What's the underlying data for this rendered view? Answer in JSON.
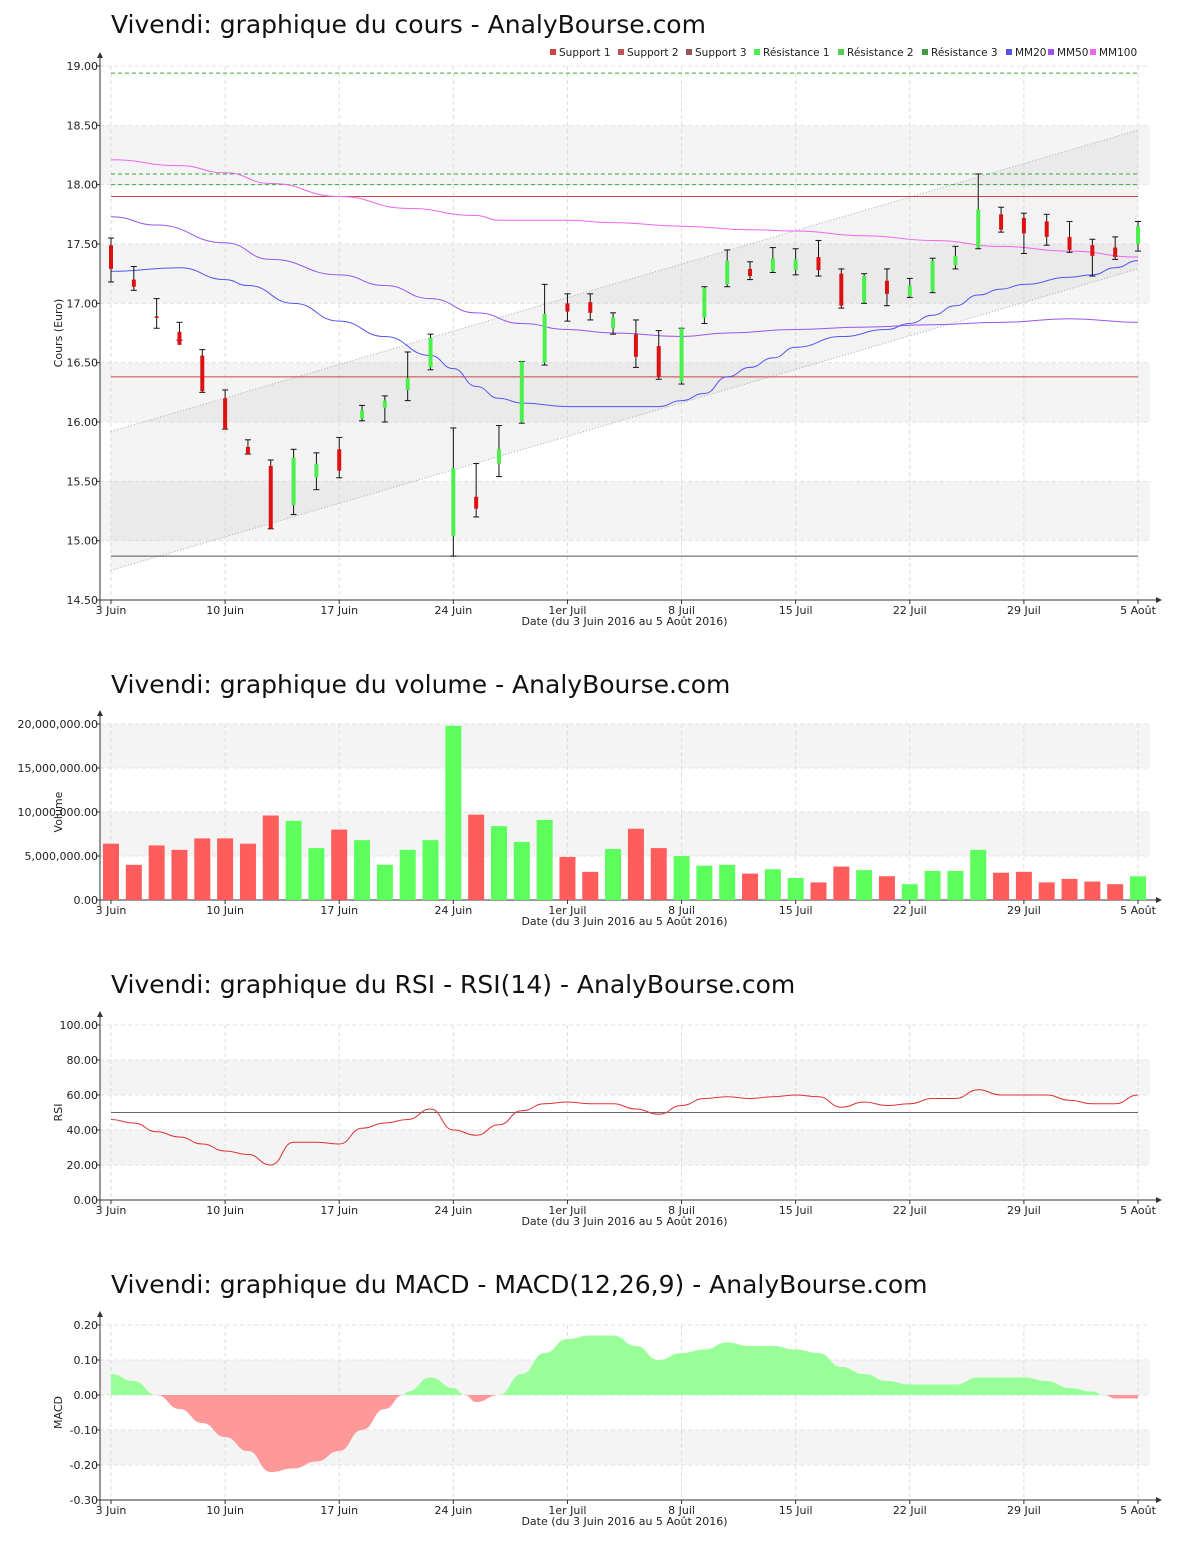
{
  "titles": {
    "price": "Vivendi: graphique du cours - AnalyBourse.com",
    "volume": "Vivendi: graphique du volume - AnalyBourse.com",
    "rsi": "Vivendi: graphique du RSI - RSI(14) - AnalyBourse.com",
    "macd": "Vivendi: graphique du MACD - MACD(12,26,9) - AnalyBourse.com"
  },
  "colors": {
    "up": "#4cf04c",
    "down": "#dd1111",
    "vol_up": "#5cff5c",
    "vol_down": "#ff5c5c",
    "mm20": "#5555ee",
    "mm50": "#9955ee",
    "mm100": "#ee66ee",
    "support": "#cc4444",
    "support3": "#555555",
    "resistance": "#33aa33",
    "macd_pos": "#99ff99",
    "macd_neg": "#ff9999",
    "rsi_line": "#dd3333"
  },
  "chart_data": [
    {
      "type": "candlestick",
      "title": "Vivendi: graphique du cours - AnalyBourse.com",
      "xlabel": "Date (du 3 Juin 2016 au 5 Août 2016)",
      "ylabel": "Cours (Euro)",
      "ylim": [
        14.5,
        19.0
      ],
      "yticks": [
        "14.50",
        "15.00",
        "15.50",
        "16.00",
        "16.50",
        "17.00",
        "17.50",
        "18.00",
        "18.50",
        "19.00"
      ],
      "xtick_labels": [
        {
          "label": "3 Juin",
          "day": 0
        },
        {
          "label": "10 Juin",
          "day": 5
        },
        {
          "label": "17 Juin",
          "day": 10
        },
        {
          "label": "24 Juin",
          "day": 15
        },
        {
          "label": "1er Juil",
          "day": 20
        },
        {
          "label": "8 Juil",
          "day": 25
        },
        {
          "label": "15 Juil",
          "day": 30
        },
        {
          "label": "22 Juil",
          "day": 35
        },
        {
          "label": "29 Juil",
          "day": 40
        },
        {
          "label": "5 Août",
          "day": 45
        }
      ],
      "legend": [
        "Support 1",
        "Support 2",
        "Support 3",
        "Résistance 1",
        "Résistance 2",
        "Résistance 3",
        "MM20",
        "MM50",
        "MM100"
      ],
      "legend_placement": "top-right",
      "grid": true,
      "candles": [
        {
          "o": 17.49,
          "h": 17.55,
          "l": 17.18,
          "c": 17.29
        },
        {
          "o": 17.2,
          "h": 17.31,
          "l": 17.11,
          "c": 17.14
        },
        {
          "o": 16.89,
          "h": 17.04,
          "l": 16.79,
          "c": 16.88
        },
        {
          "o": 16.76,
          "h": 16.84,
          "l": 16.69,
          "c": 16.65
        },
        {
          "o": 16.56,
          "h": 16.61,
          "l": 16.25,
          "c": 16.26
        },
        {
          "o": 16.2,
          "h": 16.27,
          "l": 15.94,
          "c": 15.94
        },
        {
          "o": 15.79,
          "h": 15.85,
          "l": 15.73,
          "c": 15.73
        },
        {
          "o": 15.63,
          "h": 15.68,
          "l": 15.1,
          "c": 15.1
        },
        {
          "o": 15.3,
          "h": 15.77,
          "l": 15.22,
          "c": 15.7
        },
        {
          "o": 15.53,
          "h": 15.74,
          "l": 15.43,
          "c": 15.65
        },
        {
          "o": 15.77,
          "h": 15.87,
          "l": 15.53,
          "c": 15.59
        },
        {
          "o": 16.03,
          "h": 16.14,
          "l": 16.01,
          "c": 16.1
        },
        {
          "o": 16.12,
          "h": 16.22,
          "l": 16.0,
          "c": 16.18
        },
        {
          "o": 16.27,
          "h": 16.59,
          "l": 16.18,
          "c": 16.37
        },
        {
          "o": 16.46,
          "h": 16.74,
          "l": 16.44,
          "c": 16.71
        },
        {
          "o": 15.04,
          "h": 15.95,
          "l": 14.87,
          "c": 15.61
        },
        {
          "o": 15.37,
          "h": 15.65,
          "l": 15.2,
          "c": 15.27
        },
        {
          "o": 15.65,
          "h": 15.97,
          "l": 15.54,
          "c": 15.77
        },
        {
          "o": 16.0,
          "h": 16.51,
          "l": 15.99,
          "c": 16.51
        },
        {
          "o": 16.5,
          "h": 17.16,
          "l": 16.48,
          "c": 16.91
        },
        {
          "o": 17.0,
          "h": 17.08,
          "l": 16.85,
          "c": 16.93
        },
        {
          "o": 17.01,
          "h": 17.08,
          "l": 16.86,
          "c": 16.92
        },
        {
          "o": 16.79,
          "h": 16.92,
          "l": 16.74,
          "c": 16.88
        },
        {
          "o": 16.74,
          "h": 16.86,
          "l": 16.46,
          "c": 16.55
        },
        {
          "o": 16.64,
          "h": 16.77,
          "l": 16.36,
          "c": 16.38
        },
        {
          "o": 16.34,
          "h": 16.79,
          "l": 16.32,
          "c": 16.79
        },
        {
          "o": 16.88,
          "h": 17.14,
          "l": 16.83,
          "c": 17.13
        },
        {
          "o": 17.16,
          "h": 17.45,
          "l": 17.14,
          "c": 17.36
        },
        {
          "o": 17.29,
          "h": 17.35,
          "l": 17.2,
          "c": 17.23
        },
        {
          "o": 17.27,
          "h": 17.47,
          "l": 17.26,
          "c": 17.38
        },
        {
          "o": 17.28,
          "h": 17.46,
          "l": 17.24,
          "c": 17.37
        },
        {
          "o": 17.39,
          "h": 17.53,
          "l": 17.23,
          "c": 17.28
        },
        {
          "o": 17.25,
          "h": 17.29,
          "l": 16.96,
          "c": 16.98
        },
        {
          "o": 17.01,
          "h": 17.25,
          "l": 17.0,
          "c": 17.23
        },
        {
          "o": 17.19,
          "h": 17.29,
          "l": 16.98,
          "c": 17.08
        },
        {
          "o": 17.06,
          "h": 17.21,
          "l": 17.05,
          "c": 17.15
        },
        {
          "o": 17.1,
          "h": 17.38,
          "l": 17.09,
          "c": 17.36
        },
        {
          "o": 17.32,
          "h": 17.48,
          "l": 17.29,
          "c": 17.4
        },
        {
          "o": 17.47,
          "h": 18.09,
          "l": 17.46,
          "c": 17.79
        },
        {
          "o": 17.75,
          "h": 17.81,
          "l": 17.6,
          "c": 17.62
        },
        {
          "o": 17.72,
          "h": 17.76,
          "l": 17.42,
          "c": 17.59
        },
        {
          "o": 17.69,
          "h": 17.75,
          "l": 17.49,
          "c": 17.56
        },
        {
          "o": 17.56,
          "h": 17.69,
          "l": 17.43,
          "c": 17.45
        },
        {
          "o": 17.49,
          "h": 17.54,
          "l": 17.23,
          "c": 17.4
        },
        {
          "o": 17.47,
          "h": 17.56,
          "l": 17.37,
          "c": 17.39
        },
        {
          "o": 17.5,
          "h": 17.69,
          "l": 17.44,
          "c": 17.65
        }
      ],
      "support": [
        17.9,
        16.38,
        14.87
      ],
      "resistance": [
        18.94,
        18.09,
        18.0
      ],
      "channel": {
        "upper": [
          [
            0,
            15.92
          ],
          [
            45,
            18.46
          ]
        ],
        "lower": [
          [
            0,
            14.75
          ],
          [
            45,
            17.29
          ]
        ]
      },
      "mm20": [
        [
          0,
          17.27
        ],
        [
          3,
          17.3
        ],
        [
          5,
          17.2
        ],
        [
          6,
          17.15
        ],
        [
          8,
          17.0
        ],
        [
          10,
          16.85
        ],
        [
          12,
          16.72
        ],
        [
          14,
          16.56
        ],
        [
          15,
          16.45
        ],
        [
          16,
          16.3
        ],
        [
          17,
          16.2
        ],
        [
          18,
          16.16
        ],
        [
          20,
          16.13
        ],
        [
          22,
          16.13
        ],
        [
          24,
          16.13
        ],
        [
          25,
          16.18
        ],
        [
          26,
          16.24
        ],
        [
          27,
          16.38
        ],
        [
          28,
          16.46
        ],
        [
          29,
          16.54
        ],
        [
          30,
          16.63
        ],
        [
          32,
          16.72
        ],
        [
          34,
          16.78
        ],
        [
          35,
          16.83
        ],
        [
          36,
          16.9
        ],
        [
          37,
          16.98
        ],
        [
          38,
          17.07
        ],
        [
          39,
          17.12
        ],
        [
          40,
          17.16
        ],
        [
          42,
          17.22
        ],
        [
          43,
          17.24
        ],
        [
          44,
          17.3
        ],
        [
          45,
          17.36
        ]
      ],
      "mm50": [
        [
          0,
          17.73
        ],
        [
          2,
          17.66
        ],
        [
          5,
          17.51
        ],
        [
          7,
          17.37
        ],
        [
          10,
          17.24
        ],
        [
          12,
          17.15
        ],
        [
          14,
          17.04
        ],
        [
          16,
          16.92
        ],
        [
          18,
          16.83
        ],
        [
          20,
          16.78
        ],
        [
          22,
          16.75
        ],
        [
          25,
          16.72
        ],
        [
          27,
          16.75
        ],
        [
          30,
          16.78
        ],
        [
          33,
          16.8
        ],
        [
          36,
          16.82
        ],
        [
          39,
          16.84
        ],
        [
          42,
          16.87
        ],
        [
          45,
          16.84
        ]
      ],
      "mm100": [
        [
          0,
          18.21
        ],
        [
          3,
          18.16
        ],
        [
          5,
          18.1
        ],
        [
          7,
          18.01
        ],
        [
          10,
          17.9
        ],
        [
          13,
          17.8
        ],
        [
          16,
          17.74
        ],
        [
          17,
          17.7
        ],
        [
          20,
          17.7
        ],
        [
          22,
          17.68
        ],
        [
          25,
          17.65
        ],
        [
          28,
          17.62
        ],
        [
          30,
          17.61
        ],
        [
          33,
          17.57
        ],
        [
          36,
          17.53
        ],
        [
          39,
          17.48
        ],
        [
          42,
          17.44
        ],
        [
          45,
          17.39
        ]
      ]
    },
    {
      "type": "bar",
      "title": "Vivendi: graphique du volume - AnalyBourse.com",
      "xlabel": "Date (du 3 Juin 2016 au 5 Août 2016)",
      "ylabel": "Volume",
      "ylim": [
        0,
        20000000
      ],
      "yticks": [
        "0.00",
        "5,000,000.00",
        "10,000,000.00",
        "15,000,000.00",
        "20,000,000.00"
      ],
      "xtick_labels": [
        "3 Juin",
        "10 Juin",
        "17 Juin",
        "24 Juin",
        "1er Juil",
        "8 Juil",
        "15 Juil",
        "22 Juil",
        "29 Juil",
        "5 Août"
      ],
      "values": [
        6400000,
        4000000,
        6200000,
        5700000,
        7000000,
        7000000,
        6400000,
        9600000,
        9000000,
        5900000,
        8000000,
        6800000,
        4000000,
        5700000,
        6800000,
        19800000,
        9700000,
        8400000,
        6600000,
        9100000,
        4900000,
        3200000,
        5800000,
        8100000,
        5900000,
        5000000,
        3900000,
        4000000,
        3000000,
        3500000,
        2500000,
        2000000,
        3800000,
        3400000,
        2700000,
        1800000,
        3300000,
        3300000,
        5700000,
        3100000,
        3200000,
        2000000,
        2400000,
        2100000,
        1800000,
        2700000
      ]
    },
    {
      "type": "line",
      "title": "Vivendi: graphique du RSI - RSI(14) - AnalyBourse.com",
      "xlabel": "Date (du 3 Juin 2016 au 5 Août 2016)",
      "ylabel": "RSI",
      "ylim": [
        0,
        100
      ],
      "yticks": [
        "0.00",
        "20.00",
        "40.00",
        "60.00",
        "80.00",
        "100.00"
      ],
      "xtick_labels": [
        "3 Juin",
        "10 Juin",
        "17 Juin",
        "24 Juin",
        "1er Juil",
        "8 Juil",
        "15 Juil",
        "22 Juil",
        "29 Juil",
        "5 Août"
      ],
      "reference_line": 50,
      "values": [
        46,
        44,
        39,
        36,
        32,
        28,
        26,
        20,
        33,
        33,
        32,
        41,
        44,
        46,
        52,
        40,
        37,
        43,
        51,
        55,
        56,
        55,
        55,
        52,
        49,
        54,
        58,
        59,
        58,
        59,
        60,
        59,
        53,
        56,
        54,
        55,
        58,
        58,
        63,
        60,
        60,
        60,
        57,
        55,
        55,
        60
      ]
    },
    {
      "type": "area",
      "title": "Vivendi: graphique du MACD - MACD(12,26,9) - AnalyBourse.com",
      "xlabel": "Date (du 3 Juin 2016 au 5 Août 2016)",
      "ylabel": "MACD",
      "ylim": [
        -0.3,
        0.2
      ],
      "yticks": [
        "-0.30",
        "-0.20",
        "-0.10",
        "0.00",
        "0.10",
        "0.20"
      ],
      "xtick_labels": [
        "3 Juin",
        "10 Juin",
        "17 Juin",
        "24 Juin",
        "1er Juil",
        "8 Juil",
        "15 Juil",
        "22 Juil",
        "29 Juil",
        "5 Août"
      ],
      "values": [
        0.06,
        0.04,
        0.0,
        -0.04,
        -0.08,
        -0.12,
        -0.16,
        -0.22,
        -0.21,
        -0.19,
        -0.16,
        -0.1,
        -0.04,
        0.01,
        0.05,
        0.02,
        -0.02,
        0.0,
        0.06,
        0.12,
        0.16,
        0.17,
        0.17,
        0.14,
        0.1,
        0.12,
        0.13,
        0.15,
        0.14,
        0.14,
        0.13,
        0.12,
        0.08,
        0.06,
        0.04,
        0.03,
        0.03,
        0.03,
        0.05,
        0.05,
        0.05,
        0.04,
        0.02,
        0.01,
        -0.01,
        -0.01
      ]
    }
  ]
}
